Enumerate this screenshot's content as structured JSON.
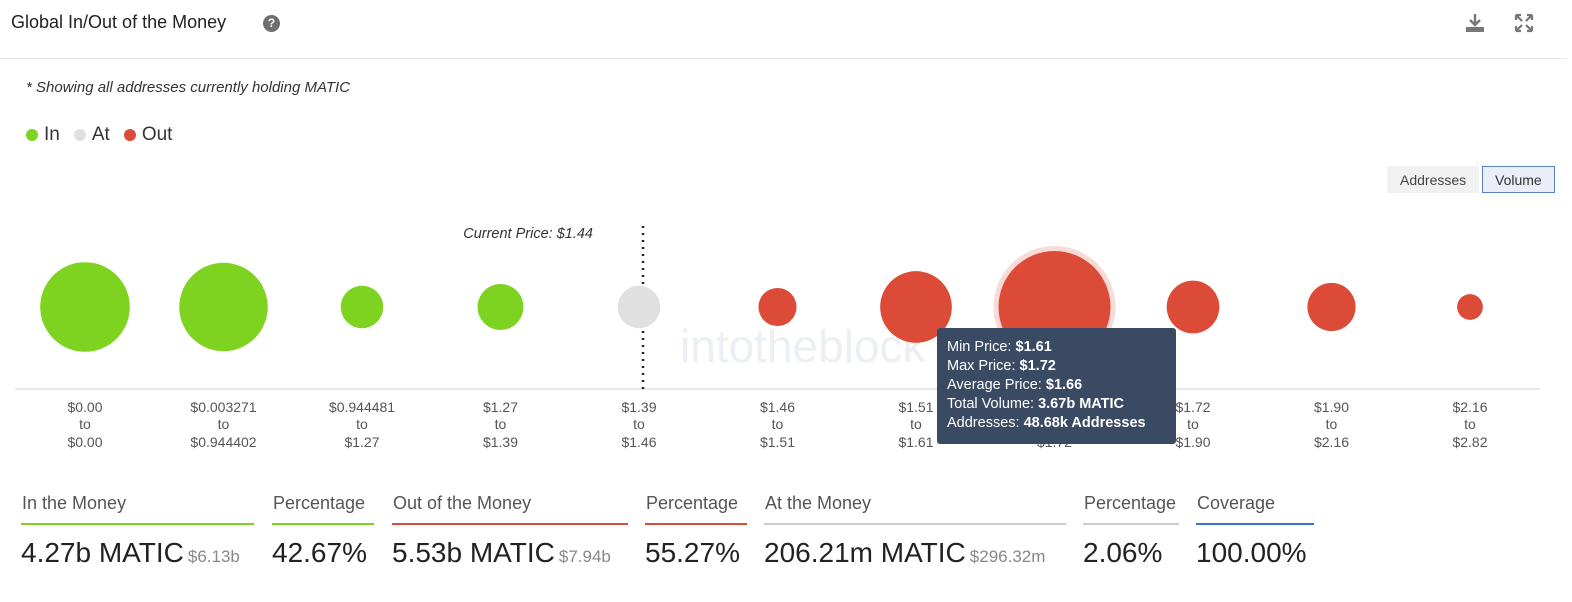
{
  "header": {
    "title": "Global In/Out of the Money",
    "help_icon": "help-circle-icon",
    "download_icon": "download-icon",
    "fullscreen_icon": "expand-icon"
  },
  "note": "* Showing all addresses currently holding MATIC",
  "legend": [
    {
      "label": "In",
      "color": "#7ed321"
    },
    {
      "label": "At",
      "color": "#e0e0e0"
    },
    {
      "label": "Out",
      "color": "#dc4b38"
    }
  ],
  "toggles": {
    "addresses": "Addresses",
    "volume": "Volume",
    "active": "volume"
  },
  "watermark": "intotheblock",
  "chart_data": {
    "type": "bubble",
    "current_price_label": "Current Price: $1.44",
    "current_price_after_index": 4,
    "categories": [
      {
        "from": "$0.00",
        "to": "$0.00",
        "status": "in",
        "size": 0.8
      },
      {
        "from": "$0.003271",
        "to": "$0.944402",
        "status": "in",
        "size": 0.79
      },
      {
        "from": "$0.944481",
        "to": "$1.27",
        "status": "in",
        "size": 0.38
      },
      {
        "from": "$1.27",
        "to": "$1.39",
        "status": "in",
        "size": 0.41
      },
      {
        "from": "$1.39",
        "to": "$1.46",
        "status": "at",
        "size": 0.38
      },
      {
        "from": "$1.46",
        "to": "$1.51",
        "status": "out",
        "size": 0.34
      },
      {
        "from": "$1.51",
        "to": "$1.61",
        "status": "out",
        "size": 0.64
      },
      {
        "from": "$1.61",
        "to": "$1.72",
        "status": "out",
        "size": 1.0,
        "highlighted": true
      },
      {
        "from": "$1.72",
        "to": "$1.90",
        "status": "out",
        "size": 0.47
      },
      {
        "from": "$1.90",
        "to": "$2.16",
        "status": "out",
        "size": 0.43
      },
      {
        "from": "$2.16",
        "to": "$2.82",
        "status": "out",
        "size": 0.23
      }
    ],
    "connector": "to",
    "colors": {
      "in": "#7ed321",
      "at": "#e0e0e0",
      "out": "#dc4b38"
    }
  },
  "tooltip": {
    "min_label": "Min Price:",
    "min_value": "$1.61",
    "max_label": "Max Price:",
    "max_value": "$1.72",
    "avg_label": "Average Price:",
    "avg_value": "$1.66",
    "vol_label": "Total Volume:",
    "vol_value": "3.67b MATIC",
    "addr_label": "Addresses:",
    "addr_value": "48.68k Addresses"
  },
  "stats": [
    {
      "label": "In the Money",
      "value": "4.27b MATIC",
      "sub": "$6.13b",
      "color": "#7ed321"
    },
    {
      "label": "Percentage",
      "value": "42.67%",
      "sub": "",
      "color": "#7ed321"
    },
    {
      "label": "Out of the Money",
      "value": "5.53b MATIC",
      "sub": "$7.94b",
      "color": "#dc4b38"
    },
    {
      "label": "Percentage",
      "value": "55.27%",
      "sub": "",
      "color": "#dc4b38"
    },
    {
      "label": "At the Money",
      "value": "206.21m MATIC",
      "sub": "$296.32m",
      "color": "#cccccc"
    },
    {
      "label": "Percentage",
      "value": "2.06%",
      "sub": "",
      "color": "#cccccc"
    },
    {
      "label": "Coverage",
      "value": "100.00%",
      "sub": "",
      "color": "#3b6fcf"
    }
  ]
}
